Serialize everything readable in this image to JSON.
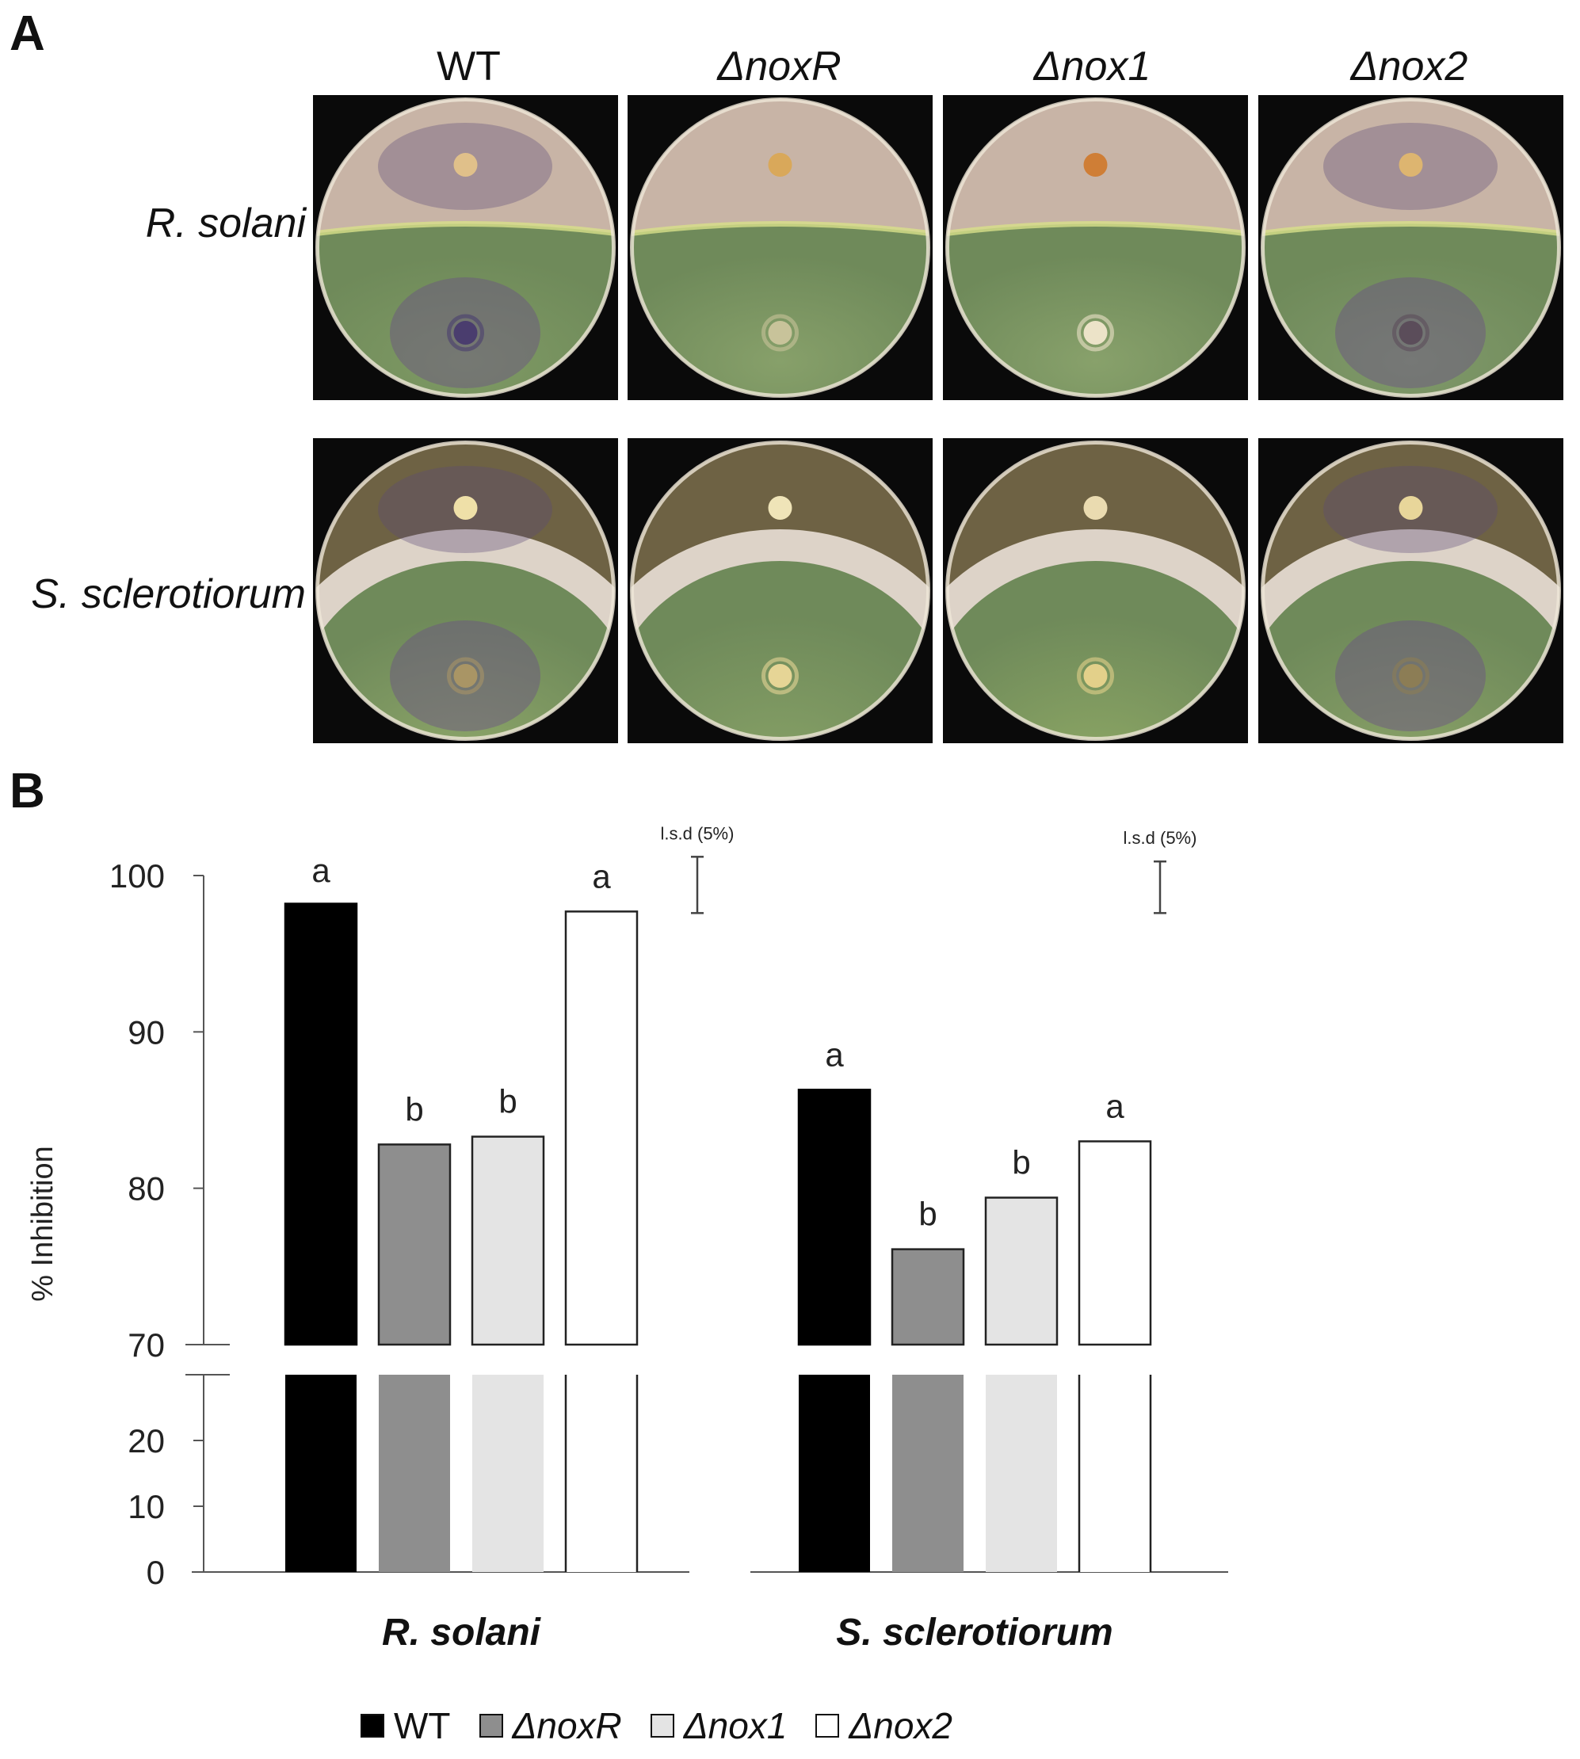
{
  "panel_a": {
    "letter": "A",
    "columns": [
      "WT",
      "ΔnoxR",
      "Δnox1",
      "Δnox2"
    ],
    "rows": [
      "R. solani",
      "S. sclerotiorum"
    ],
    "photos": [
      {
        "row": "R. solani",
        "column": "WT",
        "pathogen_colony": "#e0c08a",
        "trichoderma_zone": "#7f9a64",
        "antagonist_spot": "#4a3d6e",
        "purple_mycelium": true
      },
      {
        "row": "R. solani",
        "column": "ΔnoxR",
        "pathogen_colony": "#d9a85a",
        "trichoderma_zone": "#87a06a",
        "antagonist_spot": "#c8c39a",
        "purple_mycelium": false
      },
      {
        "row": "R. solani",
        "column": "Δnox1",
        "pathogen_colony": "#cf7e36",
        "trichoderma_zone": "#88a16b",
        "antagonist_spot": "#ece3c8",
        "purple_mycelium": false
      },
      {
        "row": "R. solani",
        "column": "Δnox2",
        "pathogen_colony": "#ddb570",
        "trichoderma_zone": "#80996a",
        "antagonist_spot": "#5b4d5a",
        "purple_mycelium": true
      },
      {
        "row": "S. sclerotiorum",
        "column": "WT",
        "pathogen_colony": "#efe0a8",
        "trichoderma_zone": "#93ab6c",
        "antagonist_spot": "#a99565",
        "purple_mycelium": true
      },
      {
        "row": "S. sclerotiorum",
        "column": "ΔnoxR",
        "pathogen_colony": "#efe4b8",
        "trichoderma_zone": "#8aa468",
        "antagonist_spot": "#e6d596",
        "purple_mycelium": false
      },
      {
        "row": "S. sclerotiorum",
        "column": "Δnox1",
        "pathogen_colony": "#eadbb0",
        "trichoderma_zone": "#91ab66",
        "antagonist_spot": "#e3d08a",
        "purple_mycelium": false
      },
      {
        "row": "S. sclerotiorum",
        "column": "Δnox2",
        "pathogen_colony": "#e8d69a",
        "trichoderma_zone": "#8ea56a",
        "antagonist_spot": "#8c7d55",
        "purple_mycelium": true
      }
    ]
  },
  "panel_b": {
    "letter": "B"
  },
  "chart_data": {
    "type": "bar",
    "ylabel": "% Inhibition",
    "groups": [
      "R. solani",
      "S. sclerotiorum"
    ],
    "series": [
      {
        "name": "WT",
        "values": [
          98.2,
          86.3
        ],
        "letters": [
          "",
          "a"
        ],
        "color": "#000000"
      },
      {
        "name": "ΔnoxR",
        "values": [
          82.8,
          76.1
        ],
        "letters": [
          "b",
          "b"
        ],
        "color": "#8e8e8e"
      },
      {
        "name": "Δnox1",
        "values": [
          83.3,
          79.4
        ],
        "letters": [
          "b",
          "b"
        ],
        "color": "#e4e4e4"
      },
      {
        "name": "Δnox2",
        "values": [
          97.7,
          83.0
        ],
        "letters": [
          "a",
          "a"
        ],
        "color": "#ffffff"
      }
    ],
    "extra_letters": [
      {
        "group": "R. solani",
        "text": "a"
      }
    ],
    "axis": {
      "lower_segment": {
        "ylim": [
          0,
          30
        ],
        "ticks": [
          0,
          10,
          20
        ]
      },
      "upper_segment": {
        "ylim": [
          70,
          100
        ],
        "ticks": [
          70,
          80,
          90,
          100
        ]
      },
      "axis_break": true
    },
    "lsd": [
      {
        "label": "l.s.d (5%)",
        "group": "R. solani",
        "low": 97.6,
        "high": 101.2
      },
      {
        "label": "l.s.d (5%)",
        "group": "S. sclerotiorum",
        "low": 97.6,
        "high": 100.9
      }
    ],
    "legend_position": "bottom"
  }
}
